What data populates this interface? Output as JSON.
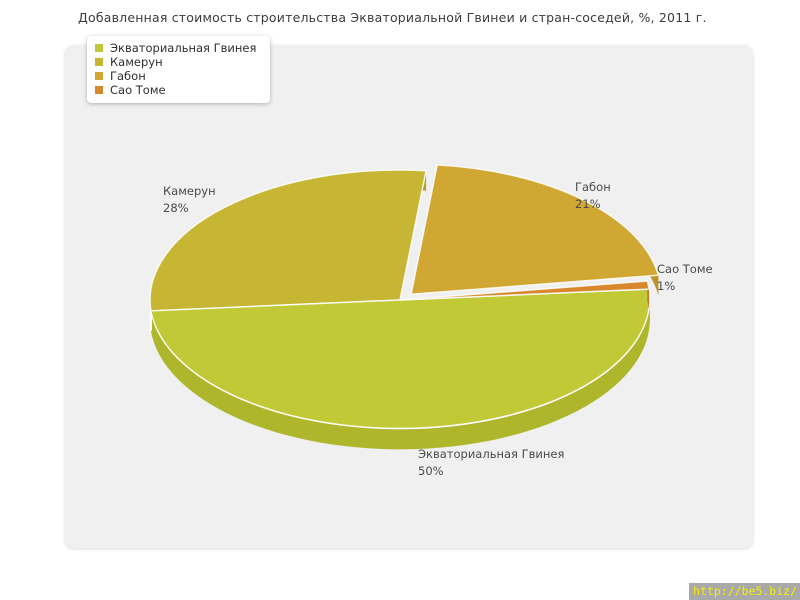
{
  "title": "Добавленная стоимость строительства Экваториальной Гвинеи и стран-соседей, %, 2011 г.",
  "watermark": "http://be5.biz/",
  "colors": {
    "page_bg": "#ffffff",
    "plot_bg": "#f0f0f0",
    "label_text": "#4a4a4a",
    "watermark_bg": "#a9a9a9",
    "watermark_text": "#f6ee00"
  },
  "chart_data": {
    "type": "pie",
    "title": "Добавленная стоимость строительства Экваториальной Гвинеи и стран-соседей, %, 2011 г.",
    "unit": "%",
    "legend_position": "top-left",
    "style": "3d-pie",
    "slices": [
      {
        "name": "Экваториальная Гвинея",
        "value": 50,
        "pct_label": "50%",
        "color": "#c1c937",
        "side_color": "#aeb62c",
        "exploded": false
      },
      {
        "name": "Камерун",
        "value": 28,
        "pct_label": "28%",
        "color": "#c6b634",
        "side_color": "#b2a32a",
        "exploded": false
      },
      {
        "name": "Габон",
        "value": 21,
        "pct_label": "21%",
        "color": "#d0a733",
        "side_color": "#bb9329",
        "exploded": true
      },
      {
        "name": "Сао Томе",
        "value": 1,
        "pct_label": "1%",
        "color": "#d9872c",
        "side_color": "#c27827",
        "exploded": false
      }
    ]
  }
}
